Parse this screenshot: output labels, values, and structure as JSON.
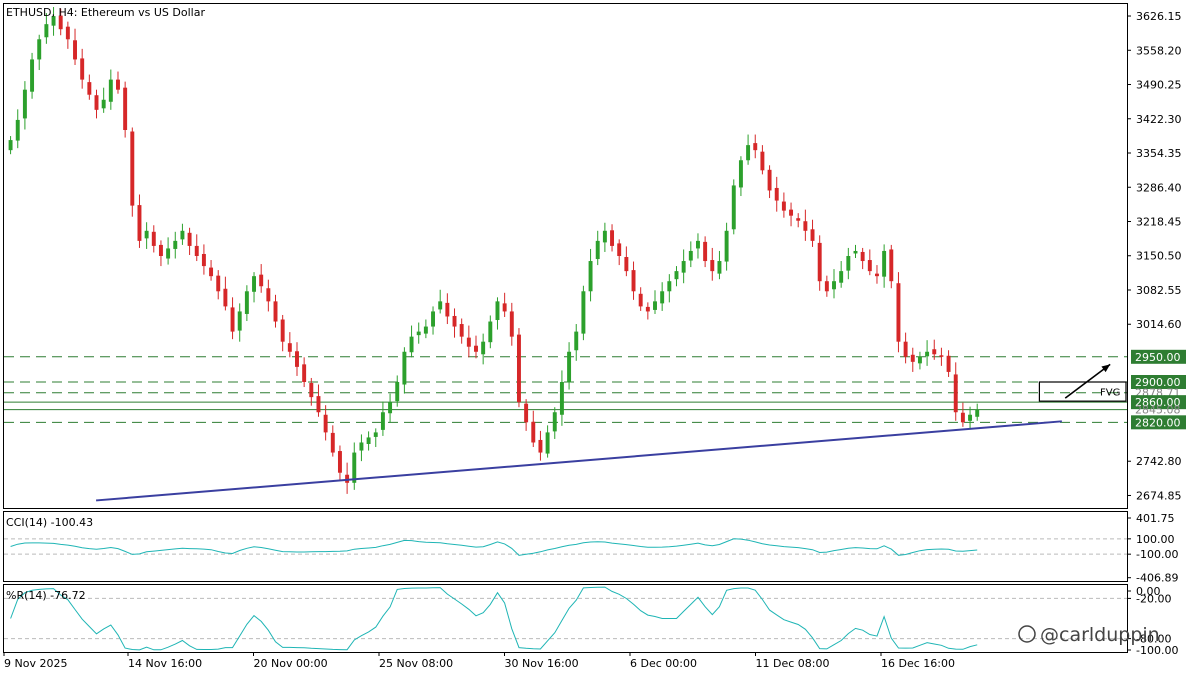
{
  "chart_data": {
    "type": "candlestick",
    "title": "ETHUSD, H4:  Ethereum vs US Dollar",
    "watermark": "@carlduppin",
    "x_labels": [
      "9 Nov 2025",
      "14 Nov 16:00",
      "20 Nov 00:00",
      "25 Nov 08:00",
      "30 Nov 16:00",
      "6 Dec 00:00",
      "11 Dec 08:00",
      "16 Dec 16:00"
    ],
    "y_ticks": [
      "3626.15",
      "3558.20",
      "3490.25",
      "3422.30",
      "3354.35",
      "3286.40",
      "3218.45",
      "3150.50",
      "3082.55",
      "3014.60",
      "2742.80",
      "2674.85"
    ],
    "y_range": [
      2650,
      3650
    ],
    "colors": {
      "up": "#2ca02c",
      "down": "#d62728",
      "level": "#2e7d32",
      "trend": "#3a3fa0",
      "osc": "#1fb5b5"
    },
    "levels": [
      {
        "label": "2950.00",
        "value": 2950,
        "style": "dashed"
      },
      {
        "label": "2900.00",
        "value": 2900,
        "style": "dashed"
      },
      {
        "label": "2878.71",
        "value": 2878.71,
        "style": "dashed"
      },
      {
        "label": "2860.00",
        "value": 2860,
        "style": "solid"
      },
      {
        "label": "2845.08",
        "value": 2845.08,
        "style": "solid"
      },
      {
        "label": "2820.00",
        "value": 2820,
        "style": "dashed"
      }
    ],
    "trendline": {
      "from": {
        "x": 0.082,
        "y": 2665
      },
      "to": {
        "x": 0.942,
        "y": 2822
      }
    },
    "fvg": {
      "label": "FVG",
      "x_from": 0.922,
      "x_to": 1.035,
      "y_low": 2862,
      "y_high": 2900
    },
    "arrow": {
      "from": {
        "x": 0.945,
        "y": 2868
      },
      "to": {
        "x": 0.985,
        "y": 2935
      }
    },
    "closes": [
      3380,
      3420,
      3480,
      3540,
      3580,
      3610,
      3626,
      3600,
      3580,
      3540,
      3500,
      3470,
      3440,
      3460,
      3500,
      3480,
      3400,
      3250,
      3180,
      3200,
      3170,
      3150,
      3165,
      3180,
      3200,
      3170,
      3150,
      3130,
      3110,
      3080,
      3050,
      3000,
      3040,
      3080,
      3110,
      3090,
      3060,
      3020,
      2980,
      2960,
      2930,
      2900,
      2870,
      2840,
      2800,
      2760,
      2720,
      2700,
      2760,
      2780,
      2790,
      2800,
      2840,
      2860,
      2900,
      2960,
      2990,
      3000,
      3010,
      3040,
      3060,
      3030,
      3010,
      2990,
      2970,
      2960,
      2980,
      3020,
      3060,
      3040,
      2990,
      2860,
      2820,
      2780,
      2760,
      2800,
      2840,
      2900,
      2960,
      3000,
      3080,
      3140,
      3180,
      3200,
      3170,
      3150,
      3120,
      3080,
      3050,
      3040,
      3060,
      3080,
      3100,
      3120,
      3140,
      3160,
      3180,
      3140,
      3120,
      3140,
      3200,
      3290,
      3340,
      3370,
      3360,
      3320,
      3280,
      3260,
      3240,
      3230,
      3220,
      3200,
      3180,
      3100,
      3080,
      3100,
      3120,
      3150,
      3160,
      3140,
      3120,
      3110,
      3160,
      3100,
      2980,
      2950,
      2940,
      2950,
      2960,
      2955,
      2950,
      2920,
      2840,
      2820,
      2835,
      2845
    ],
    "cci": {
      "label": "CCI(14) -100.43",
      "ticks": [
        "401.75",
        "100.00",
        "-100.00",
        "-406.89"
      ],
      "range": [
        -450,
        450
      ],
      "levels": [
        100,
        -100
      ]
    },
    "wpr": {
      "label": "%R(14) -76.72",
      "ticks": [
        "0.00",
        "-20.00",
        "-80.00",
        "-100.00"
      ],
      "range": [
        -100,
        0
      ],
      "levels": [
        -20,
        -80
      ]
    }
  }
}
